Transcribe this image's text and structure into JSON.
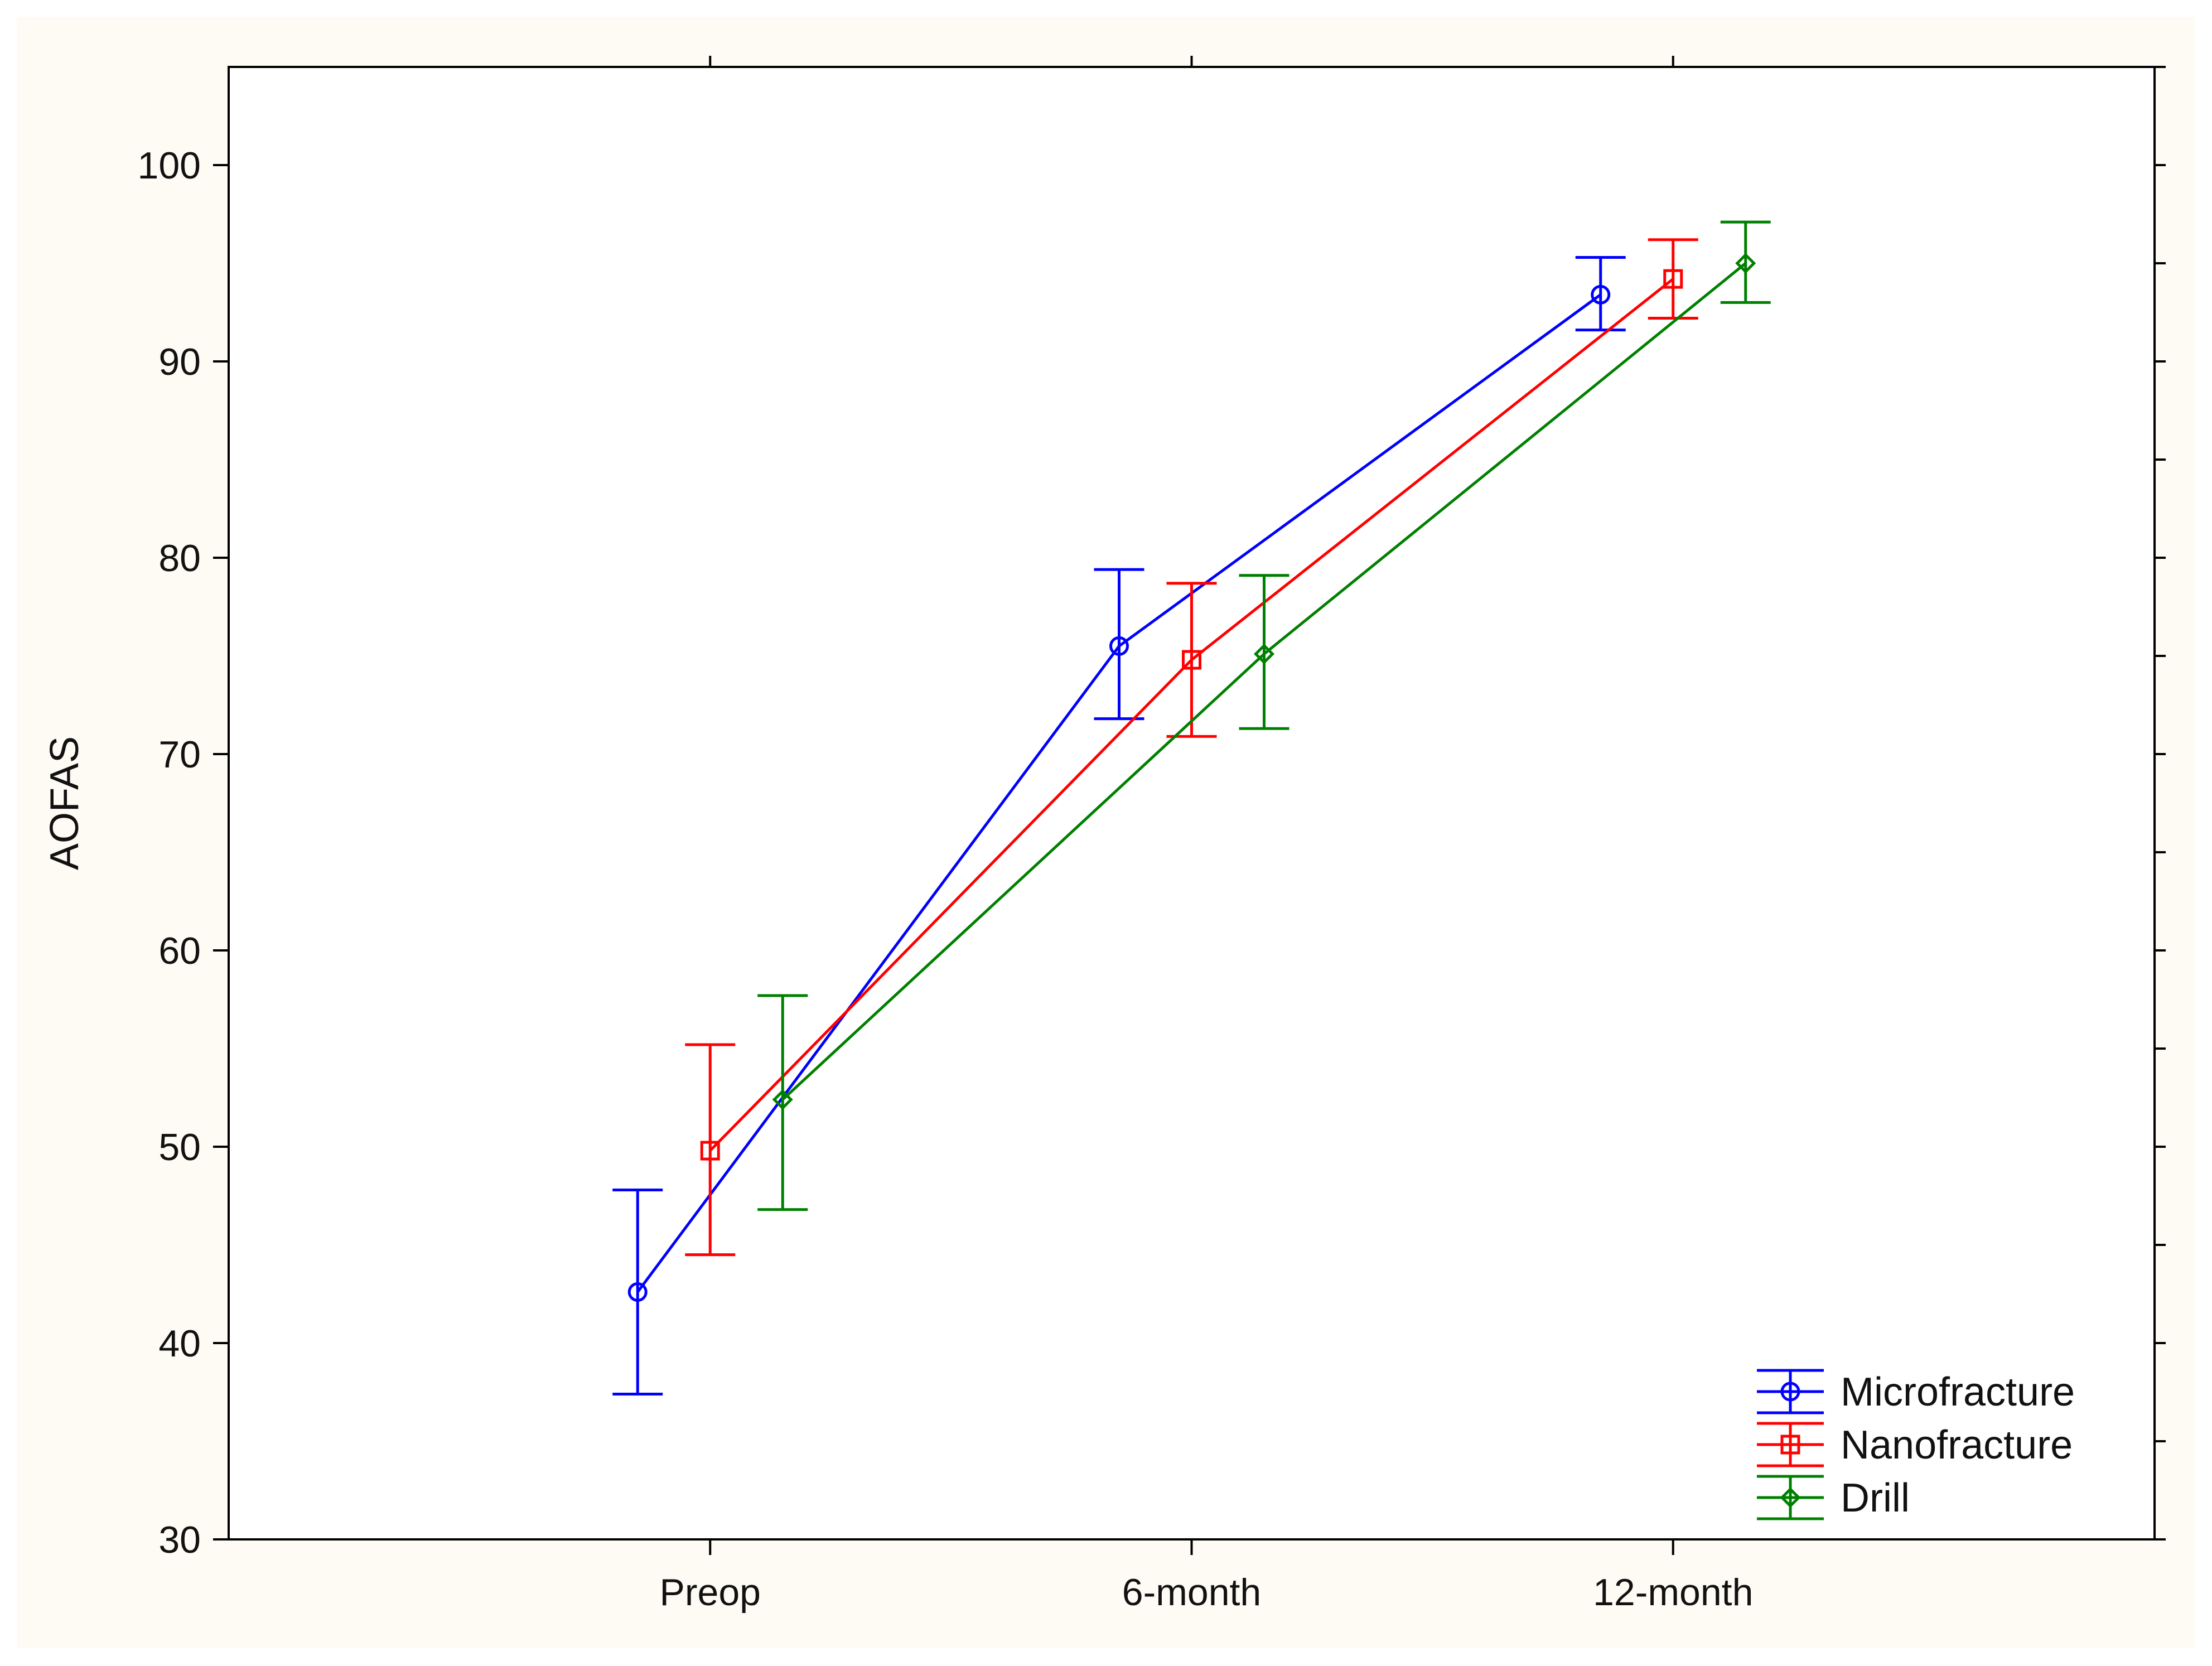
{
  "chart_data": {
    "type": "line",
    "title": "",
    "xlabel": "",
    "ylabel": "AOFAS",
    "categories": [
      "Preop",
      "6-month",
      "12-month"
    ],
    "ylim": [
      30,
      105
    ],
    "yticks": [
      30,
      40,
      50,
      60,
      70,
      80,
      90,
      100
    ],
    "grid": false,
    "legend_position": "bottom-right",
    "series": [
      {
        "name": "Microfracture",
        "color": "#0000ff",
        "marker": "circle",
        "values": [
          42.6,
          75.5,
          93.4
        ],
        "lower": [
          37.4,
          71.8,
          91.6
        ],
        "upper": [
          47.8,
          79.4,
          95.3
        ]
      },
      {
        "name": "Nanofracture",
        "color": "#ff0000",
        "marker": "square",
        "values": [
          49.8,
          74.8,
          94.2
        ],
        "lower": [
          44.5,
          70.9,
          92.2
        ],
        "upper": [
          55.2,
          78.7,
          96.2
        ]
      },
      {
        "name": "Drill",
        "color": "#008000",
        "marker": "diamond",
        "values": [
          52.4,
          75.1,
          95.0
        ],
        "lower": [
          46.8,
          71.3,
          93.0
        ],
        "upper": [
          57.7,
          79.1,
          97.1
        ]
      }
    ]
  }
}
